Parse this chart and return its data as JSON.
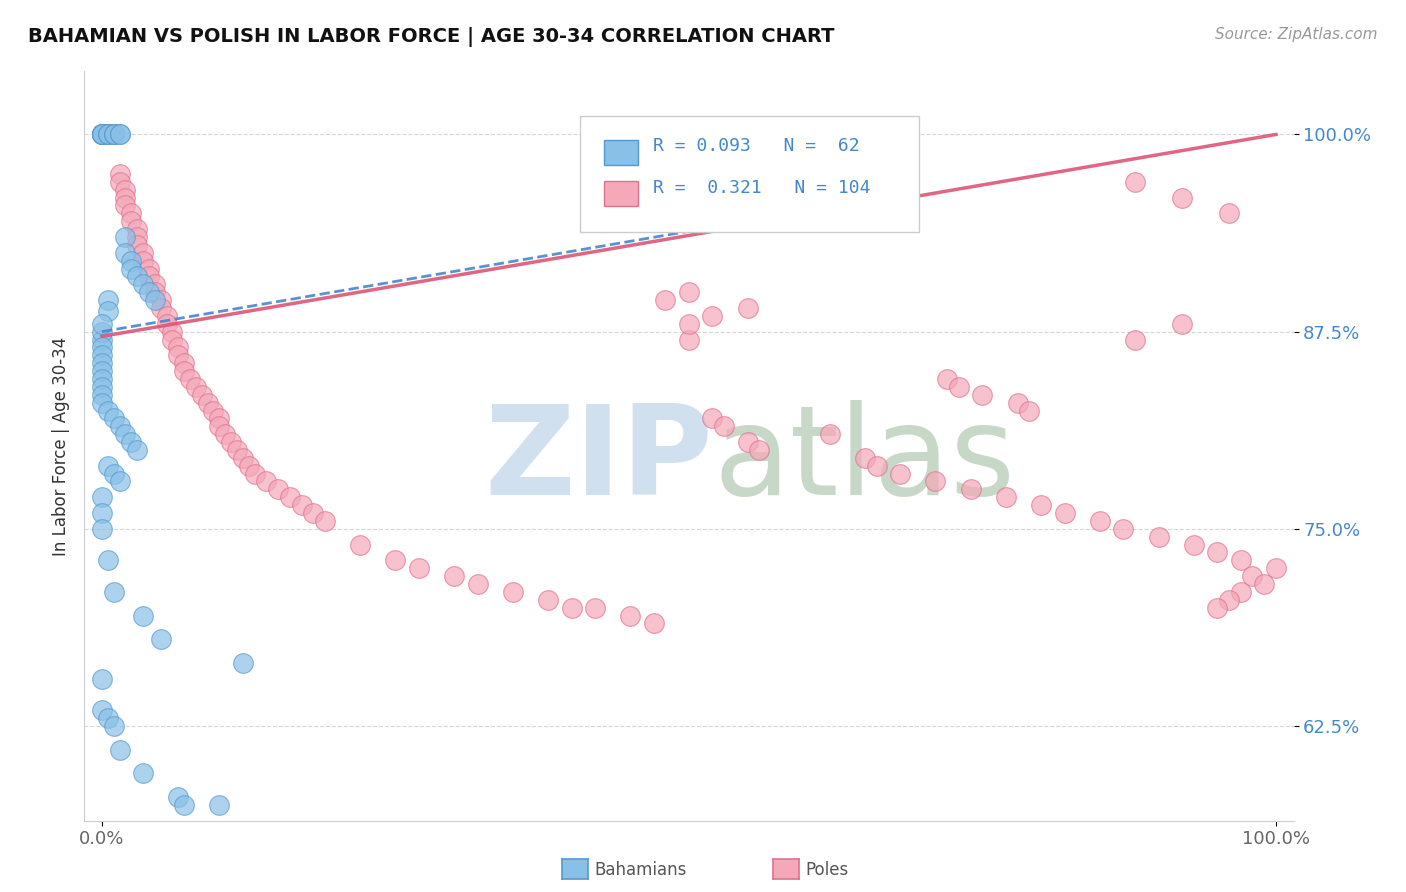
{
  "title": "BAHAMIAN VS POLISH IN LABOR FORCE | AGE 30-34 CORRELATION CHART",
  "source_text": "Source: ZipAtlas.com",
  "ylabel": "In Labor Force | Age 30-34",
  "xlim": [
    -0.015,
    1.015
  ],
  "ylim": [
    0.565,
    1.04
  ],
  "blue_R": 0.093,
  "blue_N": 62,
  "pink_R": 0.321,
  "pink_N": 104,
  "blue_color": "#89c0e8",
  "pink_color": "#f4a8b8",
  "blue_edge_color": "#5599cc",
  "pink_edge_color": "#e07090",
  "blue_line_color": "#4488cc",
  "pink_line_color": "#dd5577",
  "tick_label_color": "#4488cc",
  "ytick_values": [
    0.625,
    0.75,
    0.875,
    1.0
  ],
  "ytick_labels": [
    "62.5%",
    "75.0%",
    "87.5%",
    "100.0%"
  ],
  "grid_color": "#cccccc",
  "watermark_zip_color": "#d0e0ef",
  "watermark_atlas_color": "#c8d8c8",
  "blue_line_x": [
    0.0,
    0.55
  ],
  "blue_line_y": [
    0.875,
    0.945
  ],
  "pink_line_x": [
    0.0,
    1.0
  ],
  "pink_line_y": [
    0.872,
    1.0
  ],
  "blue_x": [
    0.0,
    0.0,
    0.0,
    0.0,
    0.0,
    0.0,
    0.0,
    0.0,
    0.005,
    0.005,
    0.01,
    0.01,
    0.01,
    0.015,
    0.015,
    0.02,
    0.02,
    0.025,
    0.025,
    0.03,
    0.035,
    0.04,
    0.045,
    0.005,
    0.005,
    0.0,
    0.0,
    0.0,
    0.0,
    0.0,
    0.0,
    0.0,
    0.0,
    0.0,
    0.0,
    0.0,
    0.005,
    0.01,
    0.015,
    0.02,
    0.025,
    0.03,
    0.005,
    0.01,
    0.015,
    0.0,
    0.0,
    0.0,
    0.005,
    0.01,
    0.035,
    0.05,
    0.12,
    0.0,
    0.0,
    0.005,
    0.01,
    0.015,
    0.035,
    0.065,
    0.07,
    0.1
  ],
  "blue_y": [
    1.0,
    1.0,
    1.0,
    1.0,
    1.0,
    1.0,
    1.0,
    1.0,
    1.0,
    1.0,
    1.0,
    1.0,
    1.0,
    1.0,
    1.0,
    0.935,
    0.925,
    0.92,
    0.915,
    0.91,
    0.905,
    0.9,
    0.895,
    0.895,
    0.888,
    0.87,
    0.875,
    0.88,
    0.865,
    0.86,
    0.855,
    0.85,
    0.845,
    0.84,
    0.835,
    0.83,
    0.825,
    0.82,
    0.815,
    0.81,
    0.805,
    0.8,
    0.79,
    0.785,
    0.78,
    0.77,
    0.76,
    0.75,
    0.73,
    0.71,
    0.695,
    0.68,
    0.665,
    0.655,
    0.635,
    0.63,
    0.625,
    0.61,
    0.595,
    0.58,
    0.575,
    0.575
  ],
  "pink_x": [
    0.0,
    0.0,
    0.0,
    0.005,
    0.005,
    0.01,
    0.01,
    0.015,
    0.015,
    0.02,
    0.02,
    0.02,
    0.025,
    0.025,
    0.03,
    0.03,
    0.03,
    0.035,
    0.035,
    0.04,
    0.04,
    0.045,
    0.045,
    0.05,
    0.05,
    0.055,
    0.055,
    0.06,
    0.06,
    0.065,
    0.065,
    0.07,
    0.07,
    0.075,
    0.08,
    0.085,
    0.09,
    0.095,
    0.1,
    0.1,
    0.105,
    0.11,
    0.115,
    0.12,
    0.125,
    0.13,
    0.14,
    0.15,
    0.16,
    0.17,
    0.18,
    0.19,
    0.22,
    0.25,
    0.27,
    0.3,
    0.32,
    0.35,
    0.38,
    0.4,
    0.42,
    0.45,
    0.47,
    0.5,
    0.5,
    0.52,
    0.55,
    0.48,
    0.5,
    0.88,
    0.92,
    0.96,
    0.88,
    0.92,
    0.72,
    0.73,
    0.75,
    0.78,
    0.79,
    0.52,
    0.53,
    0.62,
    0.55,
    0.56,
    0.65,
    0.66,
    0.68,
    0.71,
    0.74,
    0.77,
    0.8,
    0.82,
    0.85,
    0.87,
    0.9,
    0.93,
    0.95,
    0.97,
    1.0,
    0.98,
    0.99,
    0.97,
    0.96,
    0.95
  ],
  "pink_y": [
    1.0,
    1.0,
    1.0,
    1.0,
    1.0,
    1.0,
    1.0,
    0.975,
    0.97,
    0.965,
    0.96,
    0.955,
    0.95,
    0.945,
    0.94,
    0.935,
    0.93,
    0.925,
    0.92,
    0.915,
    0.91,
    0.905,
    0.9,
    0.895,
    0.89,
    0.885,
    0.88,
    0.875,
    0.87,
    0.865,
    0.86,
    0.855,
    0.85,
    0.845,
    0.84,
    0.835,
    0.83,
    0.825,
    0.82,
    0.815,
    0.81,
    0.805,
    0.8,
    0.795,
    0.79,
    0.785,
    0.78,
    0.775,
    0.77,
    0.765,
    0.76,
    0.755,
    0.74,
    0.73,
    0.725,
    0.72,
    0.715,
    0.71,
    0.705,
    0.7,
    0.7,
    0.695,
    0.69,
    0.87,
    0.88,
    0.885,
    0.89,
    0.895,
    0.9,
    0.97,
    0.96,
    0.95,
    0.87,
    0.88,
    0.845,
    0.84,
    0.835,
    0.83,
    0.825,
    0.82,
    0.815,
    0.81,
    0.805,
    0.8,
    0.795,
    0.79,
    0.785,
    0.78,
    0.775,
    0.77,
    0.765,
    0.76,
    0.755,
    0.75,
    0.745,
    0.74,
    0.735,
    0.73,
    0.725,
    0.72,
    0.715,
    0.71,
    0.705,
    0.7
  ]
}
